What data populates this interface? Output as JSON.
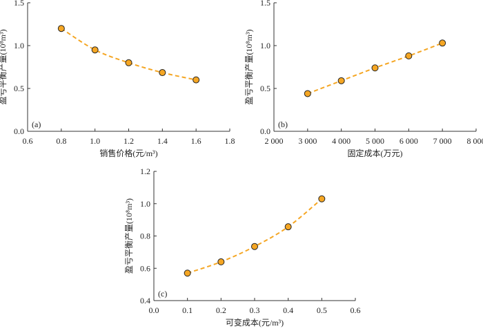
{
  "chart_data": [
    {
      "type": "scatter",
      "panel_label": "(a)",
      "xlabel": "销售价格(元/m³)",
      "ylabel": "盈亏平衡产量(10⁸m³)",
      "xlim": [
        0.6,
        1.8
      ],
      "ylim": [
        0,
        1.5
      ],
      "xticks": [
        "0.6",
        "0.8",
        "1.0",
        "1.2",
        "1.4",
        "1.6",
        "1.8"
      ],
      "xtick_values": [
        0.6,
        0.8,
        1.0,
        1.2,
        1.4,
        1.6,
        1.8
      ],
      "yticks": [
        "0.0",
        "0.5",
        "1.0",
        "1.5"
      ],
      "ytick_values": [
        0,
        0.5,
        1.0,
        1.5
      ],
      "x": [
        0.8,
        1.0,
        1.2,
        1.4,
        1.6
      ],
      "y": [
        1.2,
        0.95,
        0.8,
        0.685,
        0.6
      ]
    },
    {
      "type": "scatter",
      "panel_label": "(b)",
      "xlabel": "固定成本(万元)",
      "ylabel": "盈亏平衡产量(10⁸m³)",
      "xlim": [
        2000,
        8000
      ],
      "ylim": [
        0,
        1.5
      ],
      "xticks": [
        "2 000",
        "3 000",
        "4 000",
        "5 000",
        "6 000",
        "7 000",
        "8 000"
      ],
      "xtick_values": [
        2000,
        3000,
        4000,
        5000,
        6000,
        7000,
        8000
      ],
      "yticks": [
        "0.0",
        "0.5",
        "1.0",
        "1.5"
      ],
      "ytick_values": [
        0,
        0.5,
        1.0,
        1.5
      ],
      "x": [
        3000,
        4000,
        5000,
        6000,
        7000
      ],
      "y": [
        0.44,
        0.59,
        0.74,
        0.88,
        1.03
      ]
    },
    {
      "type": "scatter",
      "panel_label": "(c)",
      "xlabel": "可变成本(元/m³)",
      "ylabel": "盈亏平衡产量(10⁸m³)",
      "xlim": [
        0,
        0.6
      ],
      "ylim": [
        0.4,
        1.2
      ],
      "xticks": [
        "0.0",
        "0.1",
        "0.2",
        "0.3",
        "0.4",
        "0.5",
        "0.6"
      ],
      "xtick_values": [
        0,
        0.1,
        0.2,
        0.3,
        0.4,
        0.5,
        0.6
      ],
      "yticks": [
        "0.4",
        "0.6",
        "0.8",
        "1.0",
        "1.2"
      ],
      "ytick_values": [
        0.4,
        0.6,
        0.8,
        1.0,
        1.2
      ],
      "x": [
        0.1,
        0.2,
        0.3,
        0.4,
        0.5
      ],
      "y": [
        0.57,
        0.64,
        0.735,
        0.857,
        1.03
      ]
    }
  ],
  "colors": {
    "marker": "#f5a623",
    "line": "#f5a623",
    "axis": "#333333"
  }
}
